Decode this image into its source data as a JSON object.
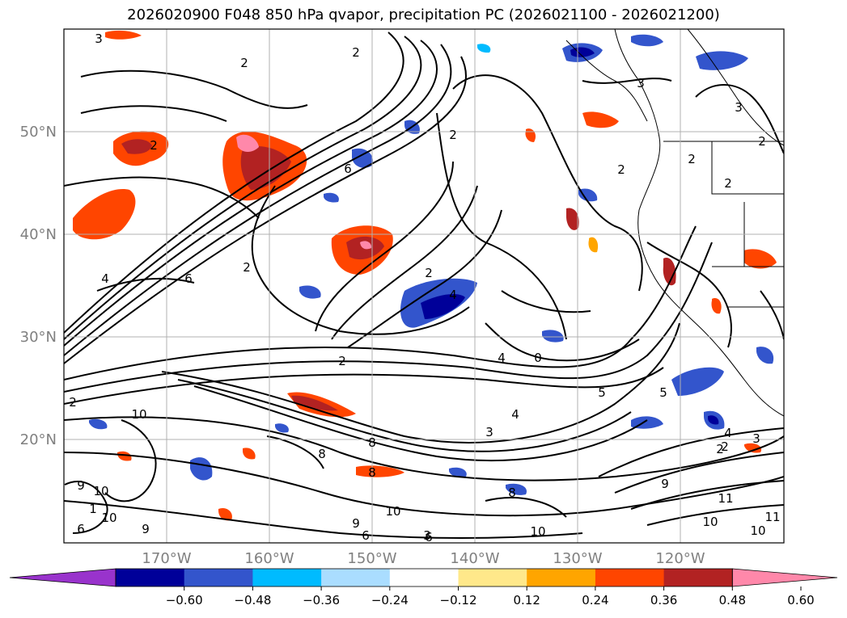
{
  "title": "2026020900 F048 850 hPa qvapor, precipitation PC (2026021100 - 2026021200)",
  "map": {
    "lat_labels": [
      "50°N",
      "40°N",
      "30°N",
      "20°N"
    ],
    "lon_labels": [
      "170°W",
      "160°W",
      "150°W",
      "140°W",
      "130°W",
      "120°W"
    ],
    "label_color": "#808080",
    "gridlines": true,
    "contour_labels": [
      "3",
      "2",
      "2",
      "2",
      "2",
      "3",
      "6",
      "2",
      "2",
      "2",
      "2",
      "3",
      "6",
      "4",
      "4",
      "2",
      "4",
      "0",
      "5",
      "4",
      "2",
      "2",
      "2",
      "5",
      "4",
      "3",
      "3",
      "2",
      "10",
      "10",
      "9",
      "8",
      "8",
      "10",
      "9",
      "10",
      "8",
      "9",
      "1",
      "10",
      "9",
      "10",
      "11",
      "10",
      "11",
      "6",
      "6",
      "6",
      "3",
      "2",
      "8"
    ]
  },
  "colorbar": {
    "tick_labels": [
      "−0.60",
      "−0.48",
      "−0.36",
      "−0.24",
      "−0.12",
      "0.12",
      "0.24",
      "0.36",
      "0.48",
      "0.60"
    ],
    "colors": [
      "#9933cc",
      "#000099",
      "#3355cc",
      "#00bbff",
      "#aaddff",
      "#ffffff",
      "#ffe88a",
      "#ffa500",
      "#ff4500",
      "#b22222",
      "#ff88aa"
    ],
    "extend": "both"
  }
}
